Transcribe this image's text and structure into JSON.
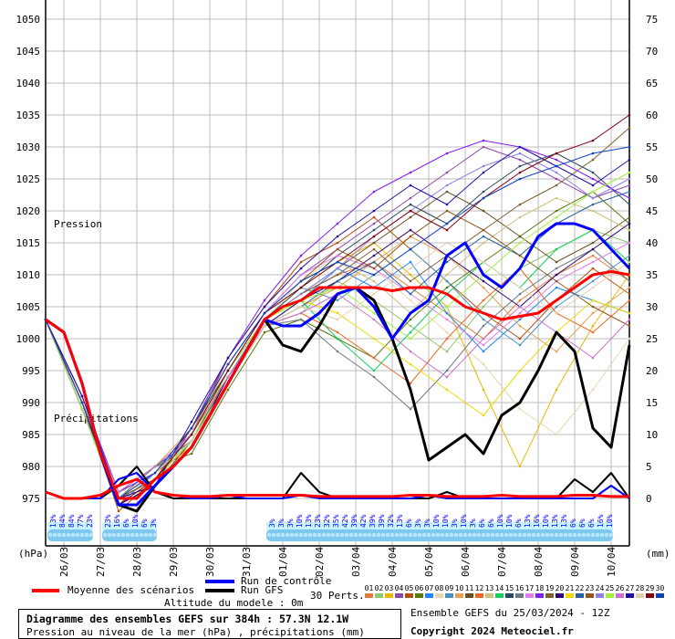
{
  "chart_data": {
    "type": "line",
    "title": "Diagramme des ensembles GEFS sur 384h : 57.3N 12.1W",
    "subtitle": "Pression au niveau de la mer (hPa) , précipitations (mm)",
    "run_info": "Ensemble GEFS du 25/03/2024 - 12Z",
    "copyright": "Copyright 2024 Meteociel.fr",
    "altitude": "Altitude du modele : 0m",
    "ylabel_left": "(hPa)",
    "ylabel_right": "(mm)",
    "label_pression": "Pression",
    "label_precip": "Précipitations",
    "ylim_left": [
      975,
      1050
    ],
    "ylim_right": [
      0,
      75
    ],
    "yticks_left": [
      1050,
      1045,
      1040,
      1035,
      1030,
      1025,
      1020,
      1015,
      1010,
      1005,
      1000,
      995,
      990,
      985,
      980,
      975
    ],
    "yticks_right": [
      75,
      70,
      65,
      60,
      55,
      50,
      45,
      40,
      35,
      30,
      25,
      20,
      15,
      10,
      5,
      0
    ],
    "xlim_hours": [
      0,
      384
    ],
    "x_tick_labels": [
      "26/03",
      "27/03",
      "28/03",
      "29/03",
      "30/03",
      "31/03",
      "01/04",
      "02/04",
      "03/04",
      "04/04",
      "05/04",
      "06/04",
      "07/04",
      "08/04",
      "09/04",
      "10/04"
    ],
    "grid": true,
    "legend": {
      "mean": "Moyenne des scénarios",
      "control": "Run de contrôle",
      "gfs": "Run GFS",
      "perts": "30 Perts."
    },
    "colors": {
      "mean": "#ff0000",
      "control": "#0000ff",
      "gfs": "#000000"
    },
    "main_step_hours": 12,
    "mean_pressure": [
      1003,
      1001,
      993,
      982,
      975,
      975,
      978,
      980,
      983,
      988,
      993,
      998,
      1003,
      1005,
      1006,
      1008,
      1008,
      1008,
      1008,
      1007.5,
      1008,
      1008,
      1007,
      1005,
      1004,
      1003,
      1003.5,
      1004,
      1006,
      1008,
      1010,
      1010.5,
      1010
    ],
    "control_pressure": [
      1003,
      1001,
      993,
      982,
      974,
      974,
      977,
      980,
      983,
      988,
      993,
      998,
      1003,
      1002,
      1002,
      1004,
      1007,
      1008,
      1005,
      1000,
      1004,
      1006,
      1013,
      1015,
      1010,
      1008,
      1011,
      1016,
      1018,
      1018,
      1017,
      1014,
      1011
    ],
    "gfs_pressure": [
      1003,
      1001,
      993,
      982,
      974,
      973,
      977,
      980,
      983,
      988,
      993,
      998,
      1003,
      999,
      998,
      1002,
      1007,
      1008,
      1006,
      1000,
      992,
      981,
      983,
      985,
      982,
      988,
      990,
      995,
      1001,
      998,
      986,
      983,
      999
    ],
    "mean_precip": [
      1,
      0,
      0,
      0.5,
      2,
      3,
      1,
      0.5,
      0.3,
      0.3,
      0.5,
      0.5,
      0.5,
      0.5,
      0.5,
      0.3,
      0.3,
      0.3,
      0.3,
      0.3,
      0.5,
      0.5,
      0.3,
      0.3,
      0.3,
      0.5,
      0.3,
      0.3,
      0.3,
      0.5,
      0.5,
      0.3,
      0.3
    ],
    "control_precip": [
      1,
      0,
      0,
      0,
      3,
      4,
      1,
      0.5,
      0,
      0,
      0.5,
      0,
      0,
      0,
      0.5,
      0,
      0,
      0,
      0,
      0,
      0,
      0.5,
      0,
      0,
      0,
      0,
      0,
      0,
      0,
      0,
      0,
      2,
      0
    ],
    "gfs_precip": [
      1,
      0,
      0,
      0,
      2,
      5,
      1,
      0,
      0,
      0,
      0,
      0,
      0,
      0,
      4,
      1,
      0,
      0,
      0,
      0,
      0,
      0,
      1,
      0,
      0,
      0,
      0,
      0,
      0,
      3,
      1,
      4,
      0
    ],
    "pert_step_hours": 24,
    "perts": [
      {
        "id": "01",
        "color": "#e07b39",
        "values": [
          1003,
          990,
          975,
          979,
          985,
          995,
          1003,
          1007,
          1010,
          1012,
          1008,
          1004,
          1000,
          1006,
          1010,
          1013,
          1009
        ]
      },
      {
        "id": "02",
        "color": "#8cc870",
        "values": [
          1003,
          989,
          974,
          978,
          984,
          993,
          1002,
          1004,
          1009,
          1006,
          1002,
          998,
          1005,
          1011,
          1014,
          1017,
          1015
        ]
      },
      {
        "id": "03",
        "color": "#e8b800",
        "values": [
          1003,
          990,
          976,
          980,
          983,
          994,
          1003,
          1008,
          1012,
          1015,
          1010,
          1005,
          992,
          980,
          992,
          1002,
          1010
        ]
      },
      {
        "id": "04",
        "color": "#8b4aa8",
        "values": [
          1003,
          991,
          975,
          977,
          986,
          996,
          1004,
          1010,
          1014,
          1018,
          1022,
          1026,
          1030,
          1028,
          1025,
          1022,
          1024
        ]
      },
      {
        "id": "05",
        "color": "#b05010",
        "values": [
          1003,
          990,
          973,
          978,
          985,
          997,
          1005,
          1012,
          1015,
          1019,
          1014,
          1009,
          1004,
          1000,
          1006,
          1011,
          1007
        ]
      },
      {
        "id": "06",
        "color": "#5a7a10",
        "values": [
          1003,
          989,
          975,
          980,
          982,
          992,
          1001,
          1003,
          1000,
          997,
          1003,
          1008,
          1012,
          1016,
          1020,
          1023,
          1018
        ]
      },
      {
        "id": "07",
        "color": "#1e88ff",
        "values": [
          1003,
          990,
          974,
          979,
          984,
          994,
          1002,
          1006,
          1011,
          1008,
          1012,
          1004,
          998,
          1003,
          1008,
          1006,
          1004
        ]
      },
      {
        "id": "08",
        "color": "#e8d8b0",
        "values": [
          1003,
          991,
          976,
          978,
          983,
          993,
          1003,
          1009,
          1013,
          1011,
          1006,
          1001,
          996,
          989,
          985,
          992,
          1000
        ]
      },
      {
        "id": "09",
        "color": "#4a90c0",
        "values": [
          1003,
          990,
          975,
          978,
          985,
          995,
          1004,
          1008,
          1006,
          1010,
          1014,
          1009,
          1003,
          999,
          1005,
          1009,
          1013
        ]
      },
      {
        "id": "10",
        "color": "#e8a050",
        "values": [
          1003,
          990,
          976,
          980,
          986,
          994,
          1002,
          1005,
          1008,
          1012,
          1016,
          1013,
          1008,
          1002,
          998,
          1004,
          1008
        ]
      },
      {
        "id": "11",
        "color": "#6a5020",
        "values": [
          1003,
          989,
          974,
          977,
          984,
          995,
          1003,
          1007,
          1011,
          1015,
          1019,
          1023,
          1020,
          1016,
          1012,
          1015,
          1019
        ]
      },
      {
        "id": "12",
        "color": "#f06820",
        "values": [
          1003,
          990,
          975,
          979,
          983,
          993,
          1002,
          1004,
          1001,
          997,
          993,
          1000,
          1006,
          1011,
          1004,
          1001,
          1006
        ]
      },
      {
        "id": "13",
        "color": "#d0c080",
        "values": [
          1003,
          991,
          975,
          978,
          985,
          996,
          1004,
          1009,
          1012,
          1009,
          1004,
          1010,
          1015,
          1019,
          1022,
          1020,
          1017
        ]
      },
      {
        "id": "14",
        "color": "#10d060",
        "values": [
          1003,
          990,
          976,
          979,
          984,
          994,
          1003,
          1006,
          1000,
          995,
          1001,
          1007,
          1012,
          1008,
          1014,
          1017,
          1012
        ]
      },
      {
        "id": "15",
        "color": "#2a4a60",
        "values": [
          1003,
          990,
          974,
          978,
          986,
          995,
          1003,
          1008,
          1013,
          1017,
          1021,
          1018,
          1023,
          1027,
          1029,
          1026,
          1021
        ]
      },
      {
        "id": "16",
        "color": "#707880",
        "values": [
          1003,
          989,
          975,
          980,
          984,
          993,
          1002,
          1003,
          998,
          994,
          989,
          995,
          1002,
          1007,
          1011,
          1014,
          1009
        ]
      },
      {
        "id": "17",
        "color": "#e080f0",
        "values": [
          1003,
          990,
          975,
          978,
          985,
          995,
          1004,
          1010,
          1013,
          1011,
          1007,
          1003,
          999,
          1004,
          1009,
          1012,
          1015
        ]
      },
      {
        "id": "18",
        "color": "#8020f0",
        "values": [
          1003,
          991,
          976,
          979,
          986,
          997,
          1006,
          1013,
          1018,
          1023,
          1026,
          1029,
          1031,
          1030,
          1028,
          1025,
          1022
        ]
      },
      {
        "id": "19",
        "color": "#806030",
        "values": [
          1003,
          990,
          975,
          978,
          984,
          994,
          1003,
          1007,
          1010,
          1014,
          1009,
          1013,
          1017,
          1021,
          1024,
          1028,
          1033
        ]
      },
      {
        "id": "20",
        "color": "#300070",
        "values": [
          1003,
          989,
          974,
          977,
          983,
          994,
          1002,
          1006,
          1009,
          1013,
          1017,
          1013,
          1009,
          1005,
          1010,
          1014,
          1018
        ]
      },
      {
        "id": "21",
        "color": "#f0d800",
        "values": [
          1003,
          990,
          975,
          979,
          985,
          995,
          1003,
          1006,
          1004,
          1000,
          996,
          992,
          988,
          995,
          1001,
          1006,
          1004
        ]
      },
      {
        "id": "22",
        "color": "#2a60a0",
        "values": [
          1003,
          990,
          976,
          980,
          984,
          993,
          1002,
          1005,
          1009,
          1012,
          1007,
          1012,
          1016,
          1013,
          1018,
          1021,
          1023
        ]
      },
      {
        "id": "23",
        "color": "#905820",
        "values": [
          1003,
          991,
          975,
          978,
          986,
          996,
          1004,
          1009,
          1014,
          1011,
          1016,
          1020,
          1017,
          1013,
          1009,
          1005,
          1002
        ]
      },
      {
        "id": "24",
        "color": "#9080e0",
        "values": [
          1003,
          990,
          975,
          979,
          985,
          994,
          1003,
          1007,
          1011,
          1016,
          1020,
          1024,
          1027,
          1029,
          1026,
          1022,
          1025
        ]
      },
      {
        "id": "25",
        "color": "#a0f040",
        "values": [
          1003,
          989,
          974,
          978,
          984,
          995,
          1003,
          1006,
          1008,
          1004,
          1000,
          1005,
          1010,
          1015,
          1019,
          1023,
          1026
        ]
      },
      {
        "id": "26",
        "color": "#d070d0",
        "values": [
          1003,
          990,
          976,
          980,
          985,
          994,
          1002,
          1004,
          1007,
          1003,
          998,
          994,
          1000,
          1005,
          1001,
          997,
          1003
        ]
      },
      {
        "id": "27",
        "color": "#2010a0",
        "values": [
          1003,
          991,
          975,
          977,
          987,
          997,
          1005,
          1011,
          1016,
          1020,
          1024,
          1021,
          1026,
          1030,
          1027,
          1024,
          1028
        ]
      },
      {
        "id": "28",
        "color": "#e0d0b0",
        "values": [
          1003,
          990,
          975,
          979,
          984,
          993,
          1002,
          1005,
          1003,
          1007,
          1011,
          1015,
          1012,
          1008,
          1004,
          1008,
          1012
        ]
      },
      {
        "id": "29",
        "color": "#800010",
        "values": [
          1003,
          990,
          974,
          978,
          985,
          995,
          1004,
          1008,
          1012,
          1016,
          1020,
          1017,
          1022,
          1026,
          1029,
          1031,
          1035
        ]
      },
      {
        "id": "30",
        "color": "#1040c0",
        "values": [
          1003,
          990,
          975,
          979,
          986,
          996,
          1004,
          1009,
          1012,
          1010,
          1014,
          1018,
          1022,
          1025,
          1027,
          1029,
          1030
        ]
      }
    ],
    "precip_probability": {
      "step_hours": 6,
      "groups": [
        {
          "start_step": 1,
          "labels": [
            "13%",
            "84%",
            "84%",
            "77%",
            "23%"
          ]
        },
        {
          "start_step": 7,
          "labels": [
            "23%",
            "16%",
            "6%",
            "10%",
            "6%",
            "3%"
          ]
        },
        {
          "start_step": 25,
          "labels": [
            "3%",
            "3%",
            "3%",
            "10%",
            "13%",
            "23%",
            "32%",
            "35%",
            "42%",
            "39%",
            "42%",
            "39%",
            "39%",
            "32%",
            "13%",
            "6%",
            "3%",
            "3%",
            "10%",
            "10%",
            "3%",
            "10%",
            "3%",
            "6%",
            "6%",
            "10%",
            "10%",
            "6%",
            "13%",
            "16%",
            "10%",
            "13%",
            "13%",
            "6%",
            "6%",
            "6%",
            "16%",
            "10%"
          ]
        }
      ]
    }
  }
}
